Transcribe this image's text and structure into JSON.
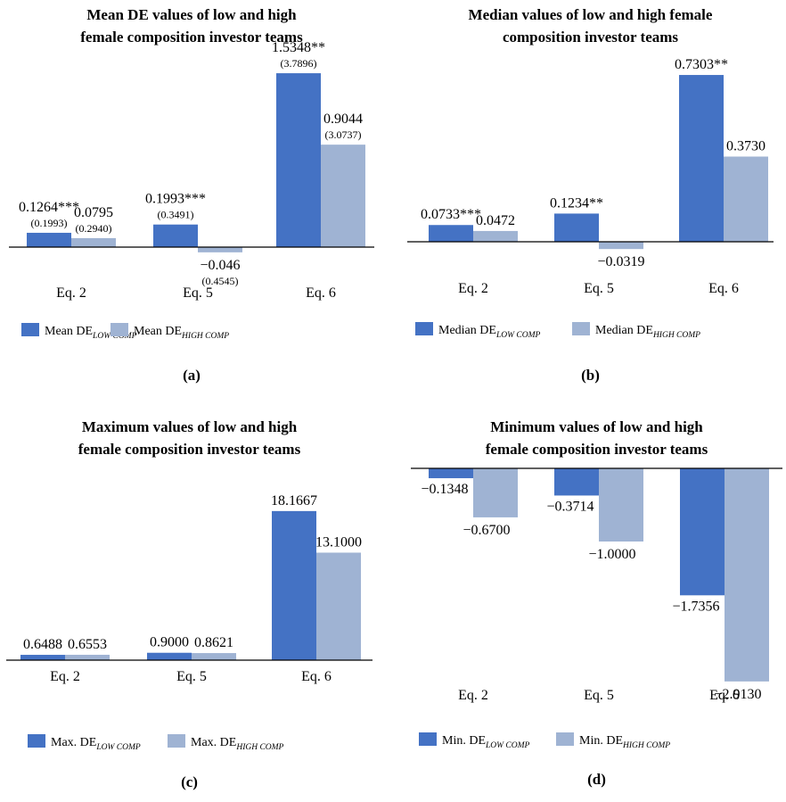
{
  "colors": {
    "low": "#4472C4",
    "high": "#9FB3D3",
    "axis": "#000000"
  },
  "chart_data": [
    {
      "type": "bar",
      "panel_label": "(a)",
      "title_lines": [
        "Mean DE values of low and high",
        "female composition investor teams"
      ],
      "categories": [
        "Eq. 2",
        "Eq. 5",
        "Eq. 6"
      ],
      "series": [
        {
          "name_main": "Mean DE",
          "name_sub": "LOW COMP",
          "values": [
            0.1264,
            0.1993,
            1.5348
          ],
          "labels": [
            "0.1264***",
            "0.1993***",
            "1.5348**"
          ],
          "sublabels": [
            "(0.1993)",
            "(0.3491)",
            "(3.7896)"
          ]
        },
        {
          "name_main": "Mean DE",
          "name_sub": "HIGH COMP",
          "values": [
            0.0795,
            -0.046,
            0.9044
          ],
          "labels": [
            "0.0795",
            "−0.046",
            "0.9044"
          ],
          "sublabels": [
            "(0.2940)",
            "(0.4545)",
            "(3.0737)"
          ]
        }
      ]
    },
    {
      "type": "bar",
      "panel_label": "(b)",
      "title_lines": [
        "Median values of low and high female",
        "composition investor teams"
      ],
      "categories": [
        "Eq. 2",
        "Eq. 5",
        "Eq. 6"
      ],
      "series": [
        {
          "name_main": "Median DE",
          "name_sub": "LOW COMP",
          "values": [
            0.0733,
            0.1234,
            0.7303
          ],
          "labels": [
            "0.0733***",
            "0.1234**",
            "0.7303**"
          ],
          "sublabels": [
            "",
            "",
            ""
          ]
        },
        {
          "name_main": "Median DE",
          "name_sub": "HIGH COMP",
          "values": [
            0.0472,
            -0.0319,
            0.373
          ],
          "labels": [
            "0.0472",
            "−0.0319",
            "0.3730"
          ],
          "sublabels": [
            "",
            "",
            ""
          ]
        }
      ]
    },
    {
      "type": "bar",
      "panel_label": "(c)",
      "title_lines": [
        "Maximum values of low and high",
        "female composition investor teams"
      ],
      "categories": [
        "Eq. 2",
        "Eq. 5",
        "Eq. 6"
      ],
      "series": [
        {
          "name_main": "Max. DE",
          "name_sub": "LOW COMP",
          "values": [
            0.6488,
            0.9,
            18.1667
          ],
          "labels": [
            "0.6488",
            "0.9000",
            "18.1667"
          ],
          "sublabels": [
            "",
            "",
            ""
          ]
        },
        {
          "name_main": "Max. DE",
          "name_sub": "HIGH COMP",
          "values": [
            0.6553,
            0.8621,
            13.1
          ],
          "labels": [
            "0.6553",
            "0.8621",
            "13.1000"
          ],
          "sublabels": [
            "",
            "",
            ""
          ]
        }
      ]
    },
    {
      "type": "bar",
      "panel_label": "(d)",
      "title_lines": [
        "Minimum values of low and high",
        "female composition investor teams"
      ],
      "categories": [
        "Eq. 2",
        "Eq. 5",
        "Eq. 6"
      ],
      "series": [
        {
          "name_main": "Min. DE",
          "name_sub": "LOW COMP",
          "values": [
            -0.1348,
            -0.3714,
            -1.7356
          ],
          "labels": [
            "−0.1348",
            "−0.3714",
            "−1.7356"
          ],
          "sublabels": [
            "",
            "",
            ""
          ]
        },
        {
          "name_main": "Min. DE",
          "name_sub": "HIGH COMP",
          "values": [
            -0.67,
            -1.0,
            -2.913
          ],
          "labels": [
            "−0.6700",
            "−1.0000",
            "−2.9130"
          ],
          "sublabels": [
            "",
            "",
            ""
          ]
        }
      ]
    }
  ]
}
